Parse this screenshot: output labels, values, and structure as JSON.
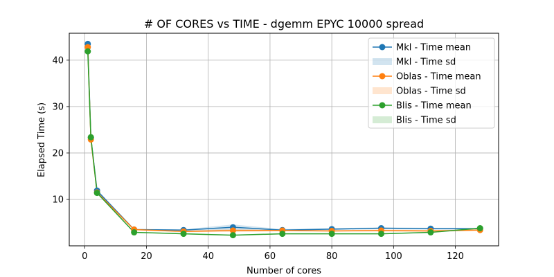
{
  "chart_data": {
    "type": "line",
    "title": "# OF CORES vs TIME - dgemm  EPYC 10000 spread",
    "xlabel": "Number of cores",
    "ylabel": "Elapsed Time (s)",
    "xlim": [
      -5,
      134
    ],
    "ylim": [
      0,
      45.8
    ],
    "xticks": [
      0,
      20,
      40,
      60,
      80,
      100,
      120
    ],
    "yticks": [
      10,
      20,
      30,
      40
    ],
    "grid": true,
    "legend_position": "top-right",
    "x": [
      1,
      2,
      4,
      16,
      32,
      48,
      64,
      80,
      96,
      112,
      128
    ],
    "series": [
      {
        "name": "Mkl - Time mean",
        "sd_name": "Mkl - Time sd",
        "color": "#1f77b4",
        "values": [
          43.5,
          23.3,
          11.9,
          3.5,
          3.4,
          4.0,
          3.4,
          3.6,
          3.8,
          3.7,
          3.7
        ],
        "sd": [
          0.2,
          0.2,
          0.2,
          0.15,
          0.15,
          0.6,
          0.2,
          0.2,
          0.2,
          0.2,
          0.2
        ]
      },
      {
        "name": "Oblas - Time mean",
        "sd_name": "Oblas - Time sd",
        "color": "#ff7f0e",
        "values": [
          42.8,
          22.9,
          11.5,
          3.5,
          3.1,
          3.3,
          3.3,
          3.2,
          3.3,
          3.2,
          3.4
        ],
        "sd": [
          0.2,
          0.2,
          0.2,
          0.15,
          0.15,
          0.3,
          0.15,
          0.15,
          0.2,
          0.2,
          0.15
        ]
      },
      {
        "name": "Blis - Time mean",
        "sd_name": "Blis - Time sd",
        "color": "#2ca02c",
        "values": [
          41.9,
          23.4,
          11.4,
          2.9,
          2.6,
          2.3,
          2.6,
          2.6,
          2.6,
          2.9,
          3.8
        ],
        "sd": [
          0.2,
          0.2,
          0.2,
          0.1,
          0.1,
          0.15,
          0.1,
          0.1,
          0.1,
          0.1,
          0.15
        ]
      }
    ]
  }
}
